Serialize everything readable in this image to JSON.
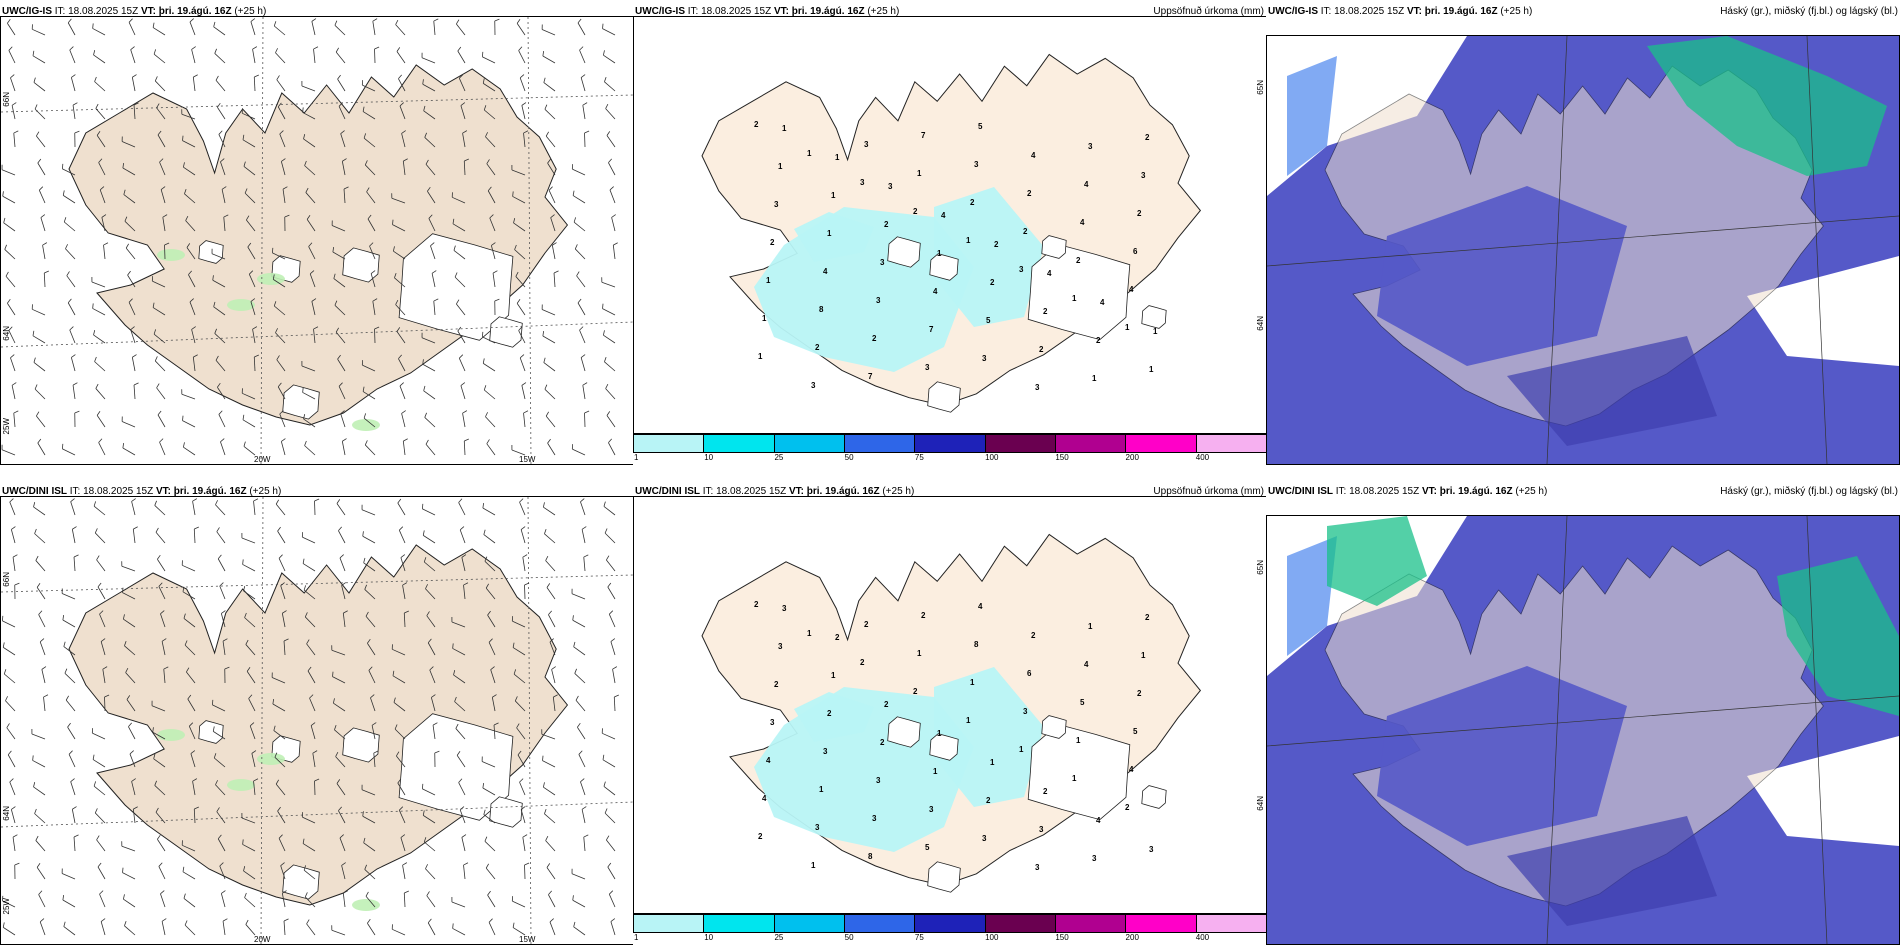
{
  "panels": [
    {
      "title_model": "UWC/IG-IS",
      "title_it": "IT: 18.08.2025 15Z",
      "title_vt_label": "VT:",
      "title_vt": "þri. 19.ágú. 16Z",
      "title_lead": "(+25 h)",
      "right_label": "",
      "axis": {
        "lat1": "66N",
        "lat2": "64N",
        "lon0": "25W",
        "lon1": "20W",
        "lon2": "15W"
      }
    },
    {
      "title_model": "UWC/IG-IS",
      "title_it": "IT: 18.08.2025 15Z",
      "title_vt_label": "VT:",
      "title_vt": "þri. 19.ágú. 16Z",
      "title_lead": "(+25 h)",
      "right_label": "Uppsöfnuð úrkoma (mm)",
      "axis": {
        "lat1": "65N",
        "lat2": "64N"
      }
    },
    {
      "title_model": "UWC/IG-IS",
      "title_it": "IT: 18.08.2025 15Z",
      "title_vt_label": "VT:",
      "title_vt": "þri. 19.ágú. 16Z",
      "title_lead": "(+25 h)",
      "right_label": "Háský (gr.), miðský (fj.bl.) og lágský (bl.)"
    },
    {
      "title_model": "UWC/DINI ISL",
      "title_it": "IT: 18.08.2025 15Z",
      "title_vt_label": "VT:",
      "title_vt": "þri. 19.ágú. 16Z",
      "title_lead": "(+25 h)",
      "right_label": "",
      "axis": {
        "lat1": "66N",
        "lat2": "64N",
        "lon0": "25W",
        "lon1": "20W",
        "lon2": "15W"
      }
    },
    {
      "title_model": "UWC/DINI ISL",
      "title_it": "IT: 18.08.2025 15Z",
      "title_vt_label": "VT:",
      "title_vt": "þri. 19.ágú. 16Z",
      "title_lead": "(+25 h)",
      "right_label": "Uppsöfnuð úrkoma (mm)",
      "axis": {
        "lat1": "65N",
        "lat2": "64N"
      }
    },
    {
      "title_model": "UWC/DINI ISL",
      "title_it": "IT: 18.08.2025 15Z",
      "title_vt_label": "VT:",
      "title_vt": "þri. 19.ágú. 16Z",
      "title_lead": "(+25 h)",
      "right_label": "Háský (gr.), miðský (fj.bl.) og lágský (bl.)"
    }
  ],
  "precip_legend": {
    "colors": [
      "#b8f4f6",
      "#00e5ee",
      "#00c0ee",
      "#2e66e8",
      "#1e22b8",
      "#6a0050",
      "#b00090",
      "#ff00c8",
      "#f6b0f0"
    ],
    "ticks": [
      "1",
      "10",
      "25",
      "50",
      "75",
      "100",
      "150",
      "200",
      "400"
    ]
  },
  "precip_labels_top": [
    "2",
    "1",
    "3",
    "2",
    "1",
    "3",
    "1",
    "1",
    "1",
    "3",
    "3",
    "1",
    "2",
    "2",
    "2",
    "4",
    "1",
    "2",
    "7",
    "7",
    "3",
    "2",
    "4",
    "6",
    "1",
    "8",
    "2",
    "3",
    "5",
    "4",
    "4",
    "2",
    "2",
    "4",
    "3",
    "7",
    "3",
    "3",
    "3",
    "3",
    "3",
    "1",
    "3",
    "4",
    "5",
    "2",
    "1",
    "2",
    "1",
    "1",
    "2",
    "1",
    "2",
    "2",
    "2",
    "1",
    "1",
    "1",
    "3",
    "4",
    "2",
    "4",
    "4",
    "1"
  ],
  "precip_labels_bottom": [
    "2",
    "1",
    "2",
    "2",
    "1",
    "1",
    "1",
    "2",
    "2",
    "1",
    "2",
    "1",
    "1",
    "3",
    "1",
    "4",
    "4",
    "3",
    "8",
    "2",
    "8",
    "6",
    "5",
    "5",
    "4",
    "1",
    "3",
    "5",
    "4",
    "2",
    "4",
    "2",
    "3",
    "3",
    "3",
    "3",
    "3",
    "3",
    "1",
    "1",
    "2",
    "2",
    "2",
    "1",
    "2",
    "3",
    "3",
    "2",
    "3",
    "1",
    "2",
    "1",
    "1",
    "2",
    "4",
    "3",
    "3",
    "2"
  ],
  "colors": {
    "land": "#efe0cf",
    "land_precip": "#fbeee0",
    "precip_light": "#b8f4f6",
    "cloud_low": "#5559c8",
    "cloud_low_dark": "#3f3fae",
    "cloud_mid": "#4b86ee",
    "cloud_high": "#19c08a",
    "wind_green": "#bff0b5"
  }
}
